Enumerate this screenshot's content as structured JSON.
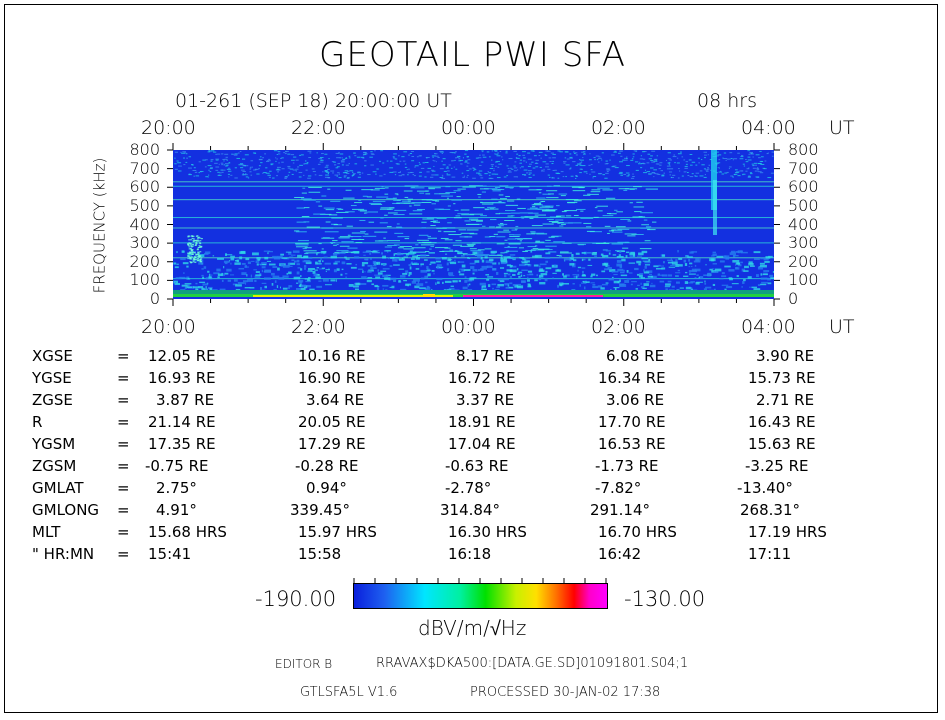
{
  "header": {
    "title": "GEOTAIL  PWI  SFA",
    "date_line": "01-261  (SEP 18)  20:00:00  UT",
    "duration": "08  hrs"
  },
  "chart_data": {
    "type": "heatmap",
    "ylabel": "FREQUENCY (kHz)",
    "x_ticks": [
      "20:00",
      "22:00",
      "00:00",
      "02:00",
      "04:00"
    ],
    "x_unit": "UT",
    "y_ticks": [
      "800",
      "700",
      "600",
      "500",
      "400",
      "300",
      "200",
      "100",
      "0"
    ],
    "ylim": [
      0,
      800
    ],
    "colorbar": {
      "min": "-190.00",
      "max": "-130.00",
      "unit": "dBV/m/√Hz"
    }
  },
  "params": {
    "rows": [
      {
        "label": "XGSE",
        "eq": "=",
        "values": [
          "12.05 RE",
          "10.16 RE",
          "8.17 RE",
          "6.08 RE",
          "3.90 RE"
        ]
      },
      {
        "label": "YGSE",
        "eq": "=",
        "values": [
          "16.93 RE",
          "16.90 RE",
          "16.72 RE",
          "16.34 RE",
          "15.73 RE"
        ]
      },
      {
        "label": "ZGSE",
        "eq": "=",
        "values": [
          "3.87 RE",
          "3.64 RE",
          "3.37 RE",
          "3.06 RE",
          "2.71 RE"
        ]
      },
      {
        "label": "R",
        "eq": "=",
        "values": [
          "21.14 RE",
          "20.05 RE",
          "18.91 RE",
          "17.70 RE",
          "16.43 RE"
        ]
      },
      {
        "label": "YGSM",
        "eq": "=",
        "values": [
          "17.35 RE",
          "17.29 RE",
          "17.04 RE",
          "16.53 RE",
          "15.63 RE"
        ]
      },
      {
        "label": "ZGSM",
        "eq": "=",
        "values": [
          "-0.75 RE",
          "-0.28 RE",
          "-0.63 RE",
          "-1.73 RE",
          "-3.25 RE"
        ]
      },
      {
        "label": "GMLAT",
        "eq": "=",
        "values": [
          "2.75°",
          "0.94°",
          "-2.78°",
          "-7.82°",
          "-13.40°"
        ]
      },
      {
        "label": "GMLONG",
        "eq": "=",
        "values": [
          "4.91°",
          "339.45°",
          "314.84°",
          "291.14°",
          "268.31°"
        ]
      },
      {
        "label": "MLT",
        "eq": "=",
        "values": [
          "15.68 HRS",
          "15.97 HRS",
          "16.30 HRS",
          "16.70 HRS",
          "17.19 HRS"
        ]
      },
      {
        "label": "\" HR:MN",
        "eq": "=",
        "values": [
          "15:41",
          "15:58",
          "16:18",
          "16:42",
          "17:11"
        ]
      }
    ]
  },
  "footer": {
    "editor": "EDITOR B",
    "path": "RRAVAX$DKA500:[DATA.GE.SD]01091801.S04;1",
    "version": "GTLSFA5L V1.6",
    "processed": "PROCESSED 30-JAN-02  17:38"
  }
}
